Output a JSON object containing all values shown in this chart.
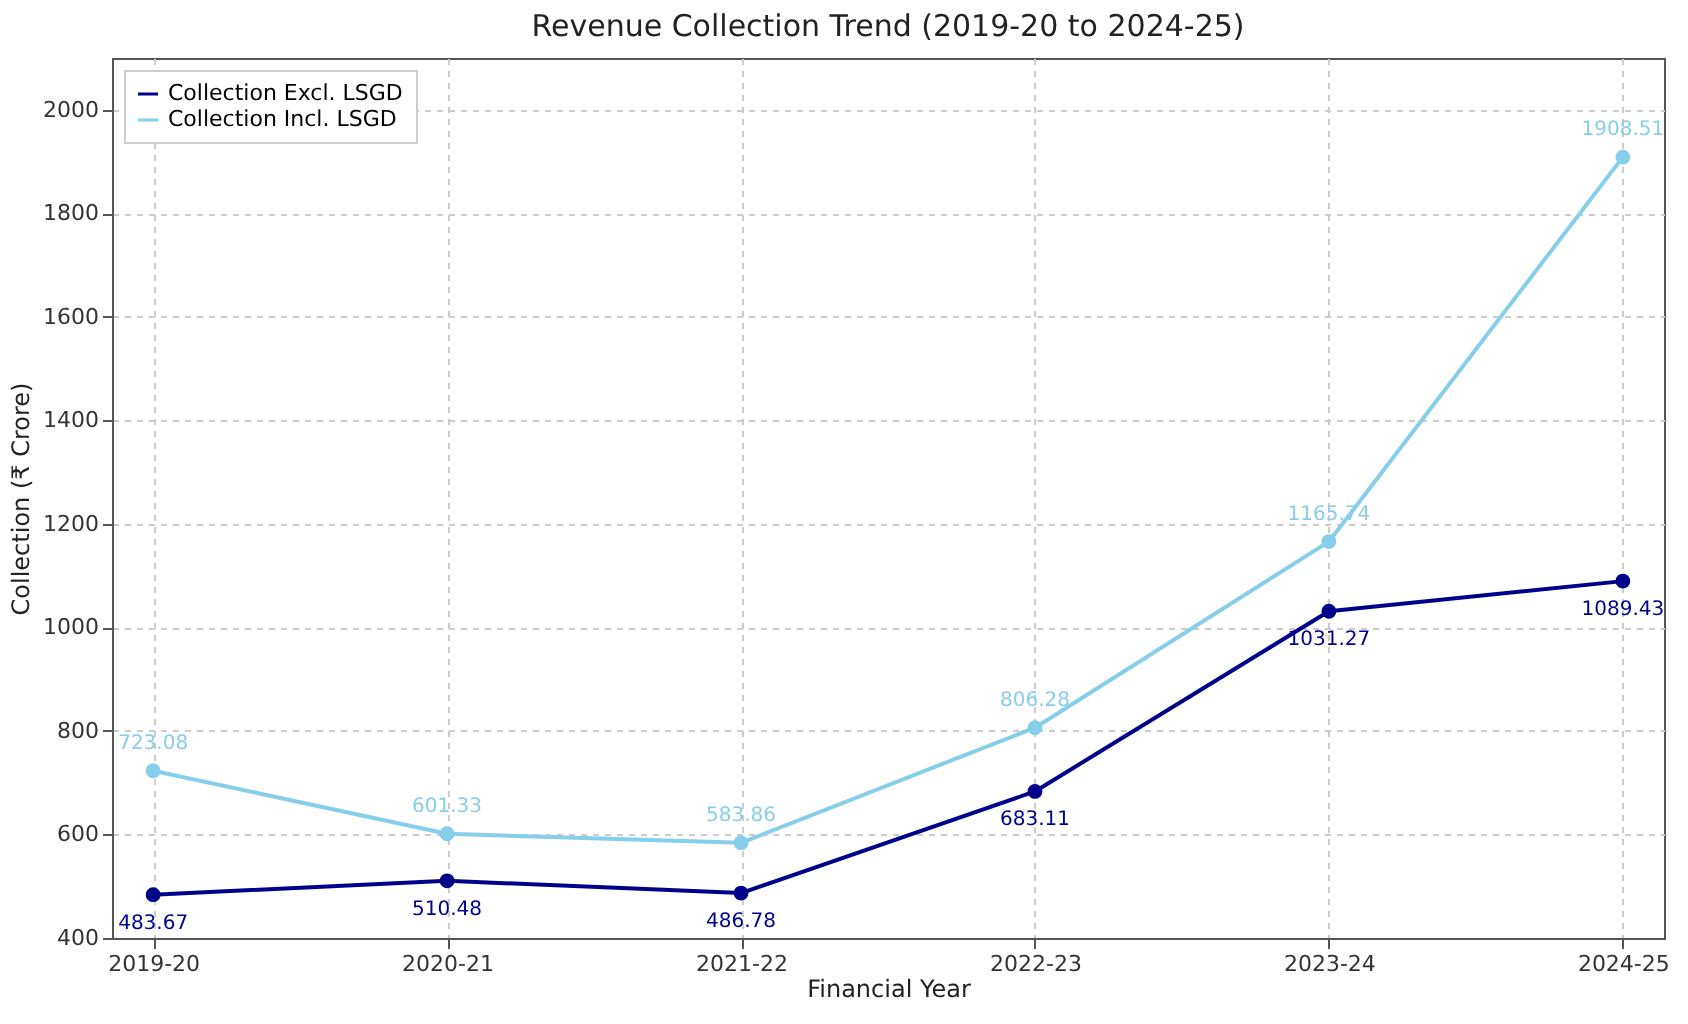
{
  "chart_data": {
    "type": "line",
    "title": "Revenue Collection Trend (2019-20 to 2024-25)",
    "xlabel": "Financial Year",
    "ylabel": "Collection (₹ Crore)",
    "categories": [
      "2019-20",
      "2020-21",
      "2021-22",
      "2022-23",
      "2023-24",
      "2024-25"
    ],
    "series": [
      {
        "name": "Collection Excl. LSGD",
        "color": "#00008b",
        "values": [
          483.67,
          510.48,
          486.78,
          683.11,
          1031.27,
          1089.43
        ]
      },
      {
        "name": "Collection Incl. LSGD",
        "color": "#87ceeb",
        "values": [
          723.08,
          601.33,
          583.86,
          806.28,
          1165.74,
          1908.51
        ]
      }
    ],
    "ylim": [
      400,
      2100
    ],
    "yticks": [
      400,
      600,
      800,
      1000,
      1200,
      1400,
      1600,
      1800,
      2000
    ],
    "grid": true,
    "legend": "top left",
    "marker": "circle",
    "line_style": "solid",
    "data_labels": true
  }
}
